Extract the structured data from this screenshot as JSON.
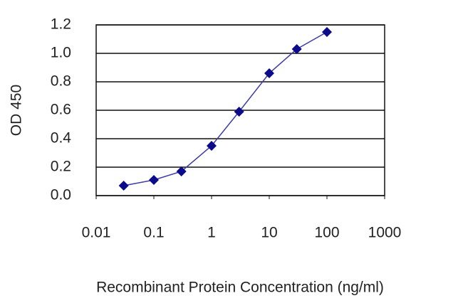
{
  "chart_data": {
    "type": "line",
    "x_label": "Recombinant Protein Concentration (ng/ml)",
    "y_label": "OD 450",
    "x": [
      0.03,
      0.1,
      0.3,
      1,
      3,
      10,
      30,
      100
    ],
    "values": [
      0.07,
      0.11,
      0.17,
      0.35,
      0.59,
      0.86,
      1.03,
      1.15
    ],
    "color": "#3c3ca8",
    "marker_color": "#0a0a8a",
    "x_log": true,
    "xlim": [
      0.01,
      1000
    ],
    "xticks": [
      0.01,
      0.1,
      1,
      10,
      100,
      1000
    ],
    "ylim": [
      0,
      1.2
    ],
    "yticks": [
      {
        "value": 0,
        "label": "0.0"
      },
      0.2,
      0.4,
      0.6,
      0.8,
      {
        "value": 1,
        "label": "1.0"
      },
      1.2
    ],
    "grid": true
  }
}
